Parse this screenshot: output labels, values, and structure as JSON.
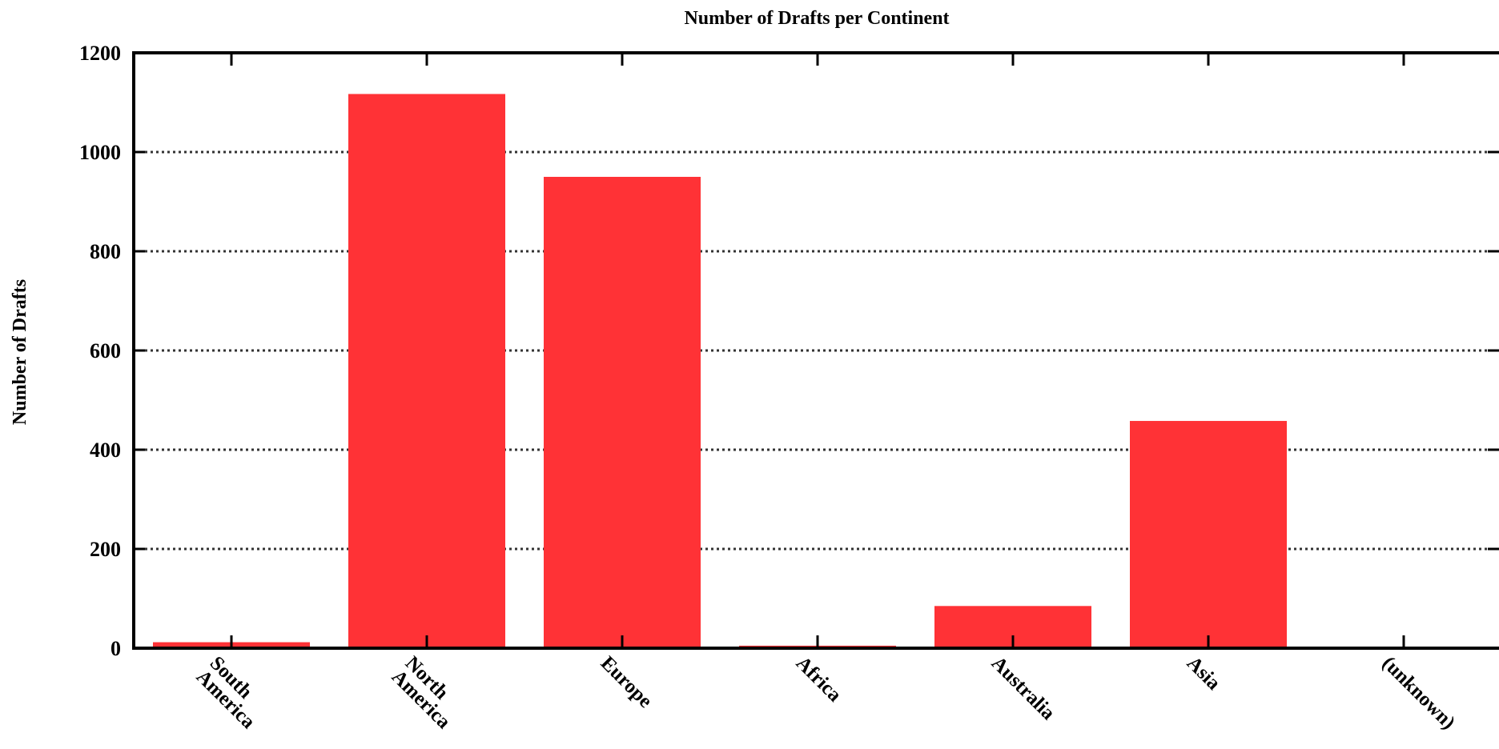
{
  "chart_data": {
    "type": "bar",
    "title": "Number of Drafts per Continent",
    "xlabel": "",
    "ylabel": "Number of Drafts",
    "categories": [
      [
        "South",
        "America"
      ],
      [
        "North",
        "America"
      ],
      [
        "Europe"
      ],
      [
        "Africa"
      ],
      [
        "Australia"
      ],
      [
        "Asia"
      ],
      [
        "(unknown)"
      ]
    ],
    "values": [
      12,
      1117,
      950,
      5,
      85,
      458,
      0
    ],
    "ylim": [
      0,
      1200
    ],
    "yticks": [
      "0",
      "200",
      "400",
      "600",
      "800",
      "1000",
      "1200"
    ],
    "ytick_values": [
      0,
      200,
      400,
      600,
      800,
      1000,
      1200
    ],
    "grid": true,
    "grid_style": "dotted",
    "legend": "none",
    "bar_color": "#ff3236"
  }
}
